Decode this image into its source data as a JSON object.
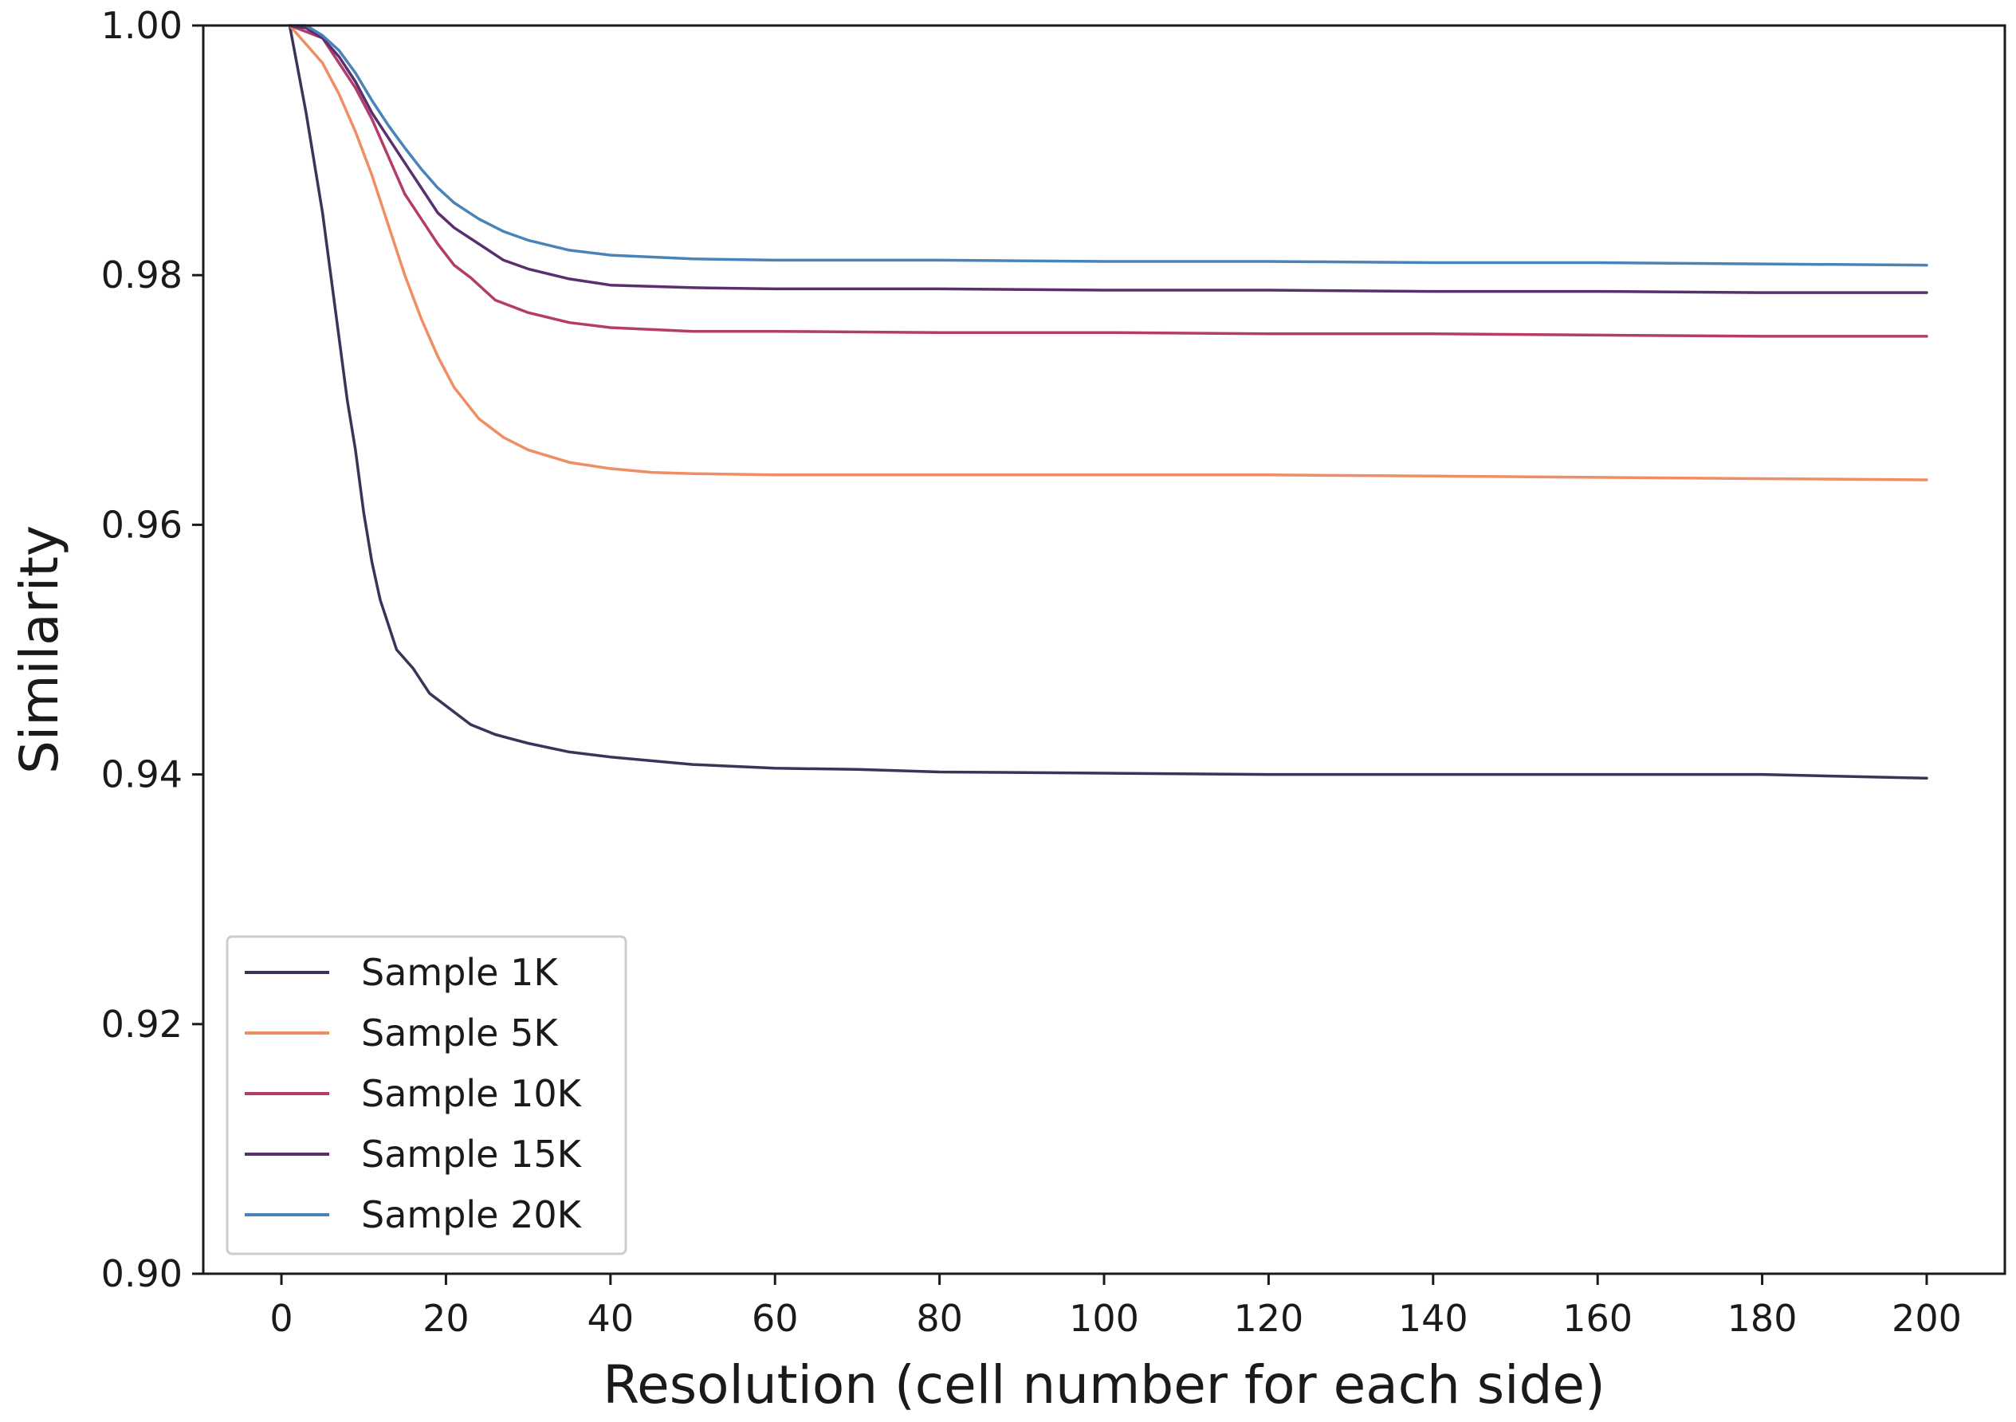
{
  "chart_data": {
    "type": "line",
    "xlabel": "Resolution (cell number for each side)",
    "ylabel": "Similarity",
    "xlim": [
      -9.5,
      209.5
    ],
    "ylim": [
      0.9,
      1.0
    ],
    "xticks": [
      0,
      20,
      40,
      60,
      80,
      100,
      120,
      140,
      160,
      180,
      200
    ],
    "xtick_labels": [
      "0",
      "20",
      "40",
      "60",
      "80",
      "100",
      "120",
      "140",
      "160",
      "180",
      "200"
    ],
    "yticks": [
      0.9,
      0.92,
      0.94,
      0.96,
      0.98,
      1.0
    ],
    "ytick_labels": [
      "0.90",
      "0.92",
      "0.94",
      "0.96",
      "0.98",
      "1.00"
    ],
    "grid": false,
    "legend_position": "lower-left",
    "series": [
      {
        "name": "Sample 1K",
        "color": "#3a3459",
        "x": [
          1,
          3,
          5,
          7,
          8,
          9,
          10,
          11,
          12,
          14,
          16,
          18,
          20,
          23,
          26,
          30,
          35,
          40,
          50,
          60,
          70,
          80,
          100,
          120,
          140,
          160,
          180,
          200
        ],
        "y": [
          1.0,
          0.993,
          0.985,
          0.975,
          0.97,
          0.966,
          0.961,
          0.957,
          0.954,
          0.95,
          0.9485,
          0.9465,
          0.9455,
          0.944,
          0.9432,
          0.9425,
          0.9418,
          0.9414,
          0.9408,
          0.9405,
          0.9404,
          0.9402,
          0.9401,
          0.94,
          0.94,
          0.94,
          0.94,
          0.9397
        ]
      },
      {
        "name": "Sample 5K",
        "color": "#f08e63",
        "x": [
          1,
          3,
          5,
          7,
          9,
          11,
          13,
          15,
          17,
          19,
          21,
          24,
          27,
          30,
          35,
          40,
          45,
          50,
          60,
          80,
          100,
          120,
          140,
          160,
          180,
          200
        ],
        "y": [
          1.0,
          0.9985,
          0.997,
          0.9945,
          0.9915,
          0.988,
          0.984,
          0.98,
          0.9765,
          0.9735,
          0.971,
          0.9685,
          0.967,
          0.966,
          0.965,
          0.9645,
          0.9642,
          0.9641,
          0.964,
          0.964,
          0.964,
          0.964,
          0.9639,
          0.9638,
          0.9637,
          0.9636
        ]
      },
      {
        "name": "Sample 10K",
        "color": "#b43c6a",
        "x": [
          1,
          3,
          5,
          7,
          9,
          11,
          13,
          15,
          17,
          19,
          21,
          23,
          26,
          30,
          35,
          40,
          50,
          60,
          80,
          100,
          120,
          140,
          160,
          180,
          200
        ],
        "y": [
          1.0,
          0.9995,
          0.999,
          0.997,
          0.995,
          0.9925,
          0.9895,
          0.9865,
          0.9845,
          0.9825,
          0.9808,
          0.9798,
          0.978,
          0.977,
          0.9762,
          0.9758,
          0.9755,
          0.9755,
          0.9754,
          0.9754,
          0.9753,
          0.9753,
          0.9752,
          0.9751,
          0.9751
        ]
      },
      {
        "name": "Sample 15K",
        "color": "#5a2f6e",
        "x": [
          1,
          3,
          5,
          7,
          9,
          11,
          13,
          15,
          17,
          19,
          21,
          24,
          27,
          30,
          35,
          40,
          50,
          60,
          80,
          100,
          120,
          140,
          160,
          180,
          200
        ],
        "y": [
          1.0,
          0.9998,
          0.999,
          0.9975,
          0.9955,
          0.993,
          0.991,
          0.989,
          0.987,
          0.985,
          0.9838,
          0.9825,
          0.9812,
          0.9805,
          0.9797,
          0.9792,
          0.979,
          0.9789,
          0.9789,
          0.9788,
          0.9788,
          0.9787,
          0.9787,
          0.9786,
          0.9786
        ]
      },
      {
        "name": "Sample 20K",
        "color": "#4a83b8",
        "x": [
          1,
          3,
          5,
          7,
          9,
          11,
          13,
          15,
          17,
          19,
          21,
          24,
          27,
          30,
          35,
          40,
          50,
          60,
          80,
          100,
          120,
          140,
          160,
          180,
          200
        ],
        "y": [
          1.0,
          1.0,
          0.9992,
          0.998,
          0.9962,
          0.994,
          0.992,
          0.9902,
          0.9885,
          0.987,
          0.9858,
          0.9845,
          0.9835,
          0.9828,
          0.982,
          0.9816,
          0.9813,
          0.9812,
          0.9812,
          0.9811,
          0.9811,
          0.981,
          0.981,
          0.9809,
          0.9808
        ]
      }
    ]
  }
}
